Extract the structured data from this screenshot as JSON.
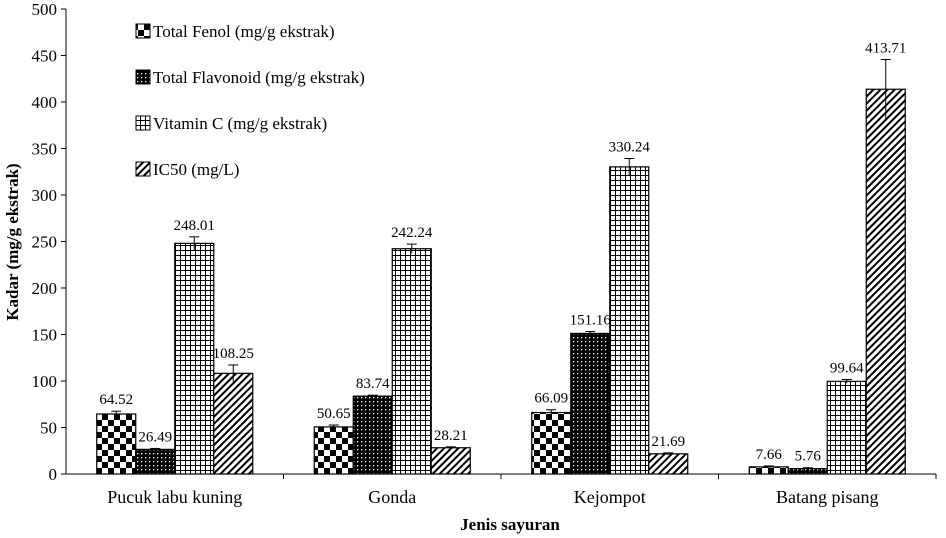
{
  "chart_data": {
    "type": "bar",
    "xlabel": "Jenis sayuran",
    "ylabel": "Kadar (mg/g ekstrak)",
    "ylim": [
      0,
      500
    ],
    "yticks": [
      0,
      50,
      100,
      150,
      200,
      250,
      300,
      350,
      400,
      450,
      500
    ],
    "grid": false,
    "legend_position": "top-left",
    "categories": [
      "Pucuk labu kuning",
      "Gonda",
      "Kejompot",
      "Batang pisang"
    ],
    "series": [
      {
        "name": "Total Fenol (mg/g ekstrak)",
        "pattern": "checker",
        "values": [
          64.52,
          50.65,
          66.09,
          7.66
        ],
        "errors": [
          3,
          2,
          3,
          1
        ]
      },
      {
        "name": "Total Flavonoid (mg/g ekstrak)",
        "pattern": "dots",
        "values": [
          26.49,
          83.74,
          151.16,
          5.76
        ],
        "errors": [
          1,
          1,
          2,
          1
        ]
      },
      {
        "name": "Vitamin C (mg/g ekstrak)",
        "pattern": "grid",
        "values": [
          248.01,
          242.24,
          330.24,
          99.64
        ],
        "errors": [
          7,
          5,
          9,
          2
        ]
      },
      {
        "name": "IC50 (mg/L)",
        "pattern": "diagonal",
        "values": [
          108.25,
          28.21,
          21.69,
          413.71
        ],
        "errors": [
          9,
          1,
          1,
          32
        ]
      }
    ],
    "data_labels": [
      [
        "64.52",
        "50.65",
        "66.09",
        "7.66"
      ],
      [
        "26.49",
        "83.74",
        "151.16",
        "5.76"
      ],
      [
        "248.01",
        "242.24",
        "330.24",
        "99.64"
      ],
      [
        "108.25",
        "28.21",
        "21.69",
        "413.71"
      ]
    ]
  }
}
